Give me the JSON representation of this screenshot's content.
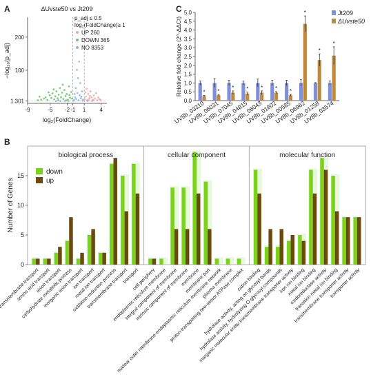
{
  "chart_data": [
    {
      "panel": "A",
      "type": "scatter",
      "title": "ΔUvste50 vs Jt209",
      "xlabel": "log₂(FoldChange)",
      "ylabel": "−log₁₀(p_adj)",
      "x_ticks": [
        "-9",
        "-5",
        "-2",
        "-1",
        "1",
        "4"
      ],
      "x_tick_values": [
        -9,
        -5,
        -2,
        -1,
        1,
        4
      ],
      "y_ticks": [
        "1.301",
        "100",
        "200"
      ],
      "y_tick_values": [
        1.301,
        100,
        200
      ],
      "xlim": [
        -9,
        5
      ],
      "ylim": [
        0,
        260
      ],
      "thresholds": {
        "padj": "p_adj ≤ 0.5",
        "fold": "log₂(FoldChange)≥ 1"
      },
      "legend": [
        {
          "label": "UP 260",
          "color": "#f4a6a0"
        },
        {
          "label": "DOWN 365",
          "color": "#6cc36c"
        },
        {
          "label": "NO 8353",
          "color": "#8fb4e8"
        }
      ],
      "points": [
        {
          "x": -7.2,
          "y": 3,
          "s": "down"
        },
        {
          "x": -6.6,
          "y": 5,
          "s": "down"
        },
        {
          "x": -6.1,
          "y": 8,
          "s": "down"
        },
        {
          "x": -5.8,
          "y": 12,
          "s": "down"
        },
        {
          "x": -5.5,
          "y": 4,
          "s": "down"
        },
        {
          "x": -5.1,
          "y": 18,
          "s": "down"
        },
        {
          "x": -4.8,
          "y": 10,
          "s": "down"
        },
        {
          "x": -4.6,
          "y": 24,
          "s": "down"
        },
        {
          "x": -4.3,
          "y": 6,
          "s": "down"
        },
        {
          "x": -4.1,
          "y": 15,
          "s": "down"
        },
        {
          "x": -3.9,
          "y": 30,
          "s": "down"
        },
        {
          "x": -3.7,
          "y": 9,
          "s": "down"
        },
        {
          "x": -3.5,
          "y": 20,
          "s": "down"
        },
        {
          "x": -3.3,
          "y": 40,
          "s": "down"
        },
        {
          "x": -3.1,
          "y": 12,
          "s": "down"
        },
        {
          "x": -2.9,
          "y": 26,
          "s": "down"
        },
        {
          "x": -2.7,
          "y": 7,
          "s": "down"
        },
        {
          "x": -2.5,
          "y": 34,
          "s": "down"
        },
        {
          "x": -2.3,
          "y": 16,
          "s": "down"
        },
        {
          "x": -2.1,
          "y": 22,
          "s": "down"
        },
        {
          "x": -1.9,
          "y": 5,
          "s": "down"
        },
        {
          "x": -1.7,
          "y": 45,
          "s": "down"
        },
        {
          "x": -1.5,
          "y": 11,
          "s": "down"
        },
        {
          "x": -1.3,
          "y": 28,
          "s": "down"
        },
        {
          "x": -1.15,
          "y": 8,
          "s": "down"
        },
        {
          "x": -6.9,
          "y": 14,
          "s": "down"
        },
        {
          "x": -5.3,
          "y": 27,
          "s": "down"
        },
        {
          "x": -4.4,
          "y": 36,
          "s": "down"
        },
        {
          "x": -3.6,
          "y": 3,
          "s": "down"
        },
        {
          "x": -2.8,
          "y": 50,
          "s": "down"
        },
        {
          "x": -2.2,
          "y": 3,
          "s": "down"
        },
        {
          "x": -1.6,
          "y": 19,
          "s": "down"
        },
        {
          "x": 1.1,
          "y": 6,
          "s": "up"
        },
        {
          "x": 1.3,
          "y": 14,
          "s": "up"
        },
        {
          "x": 1.5,
          "y": 4,
          "s": "up"
        },
        {
          "x": 1.7,
          "y": 22,
          "s": "up"
        },
        {
          "x": 1.9,
          "y": 9,
          "s": "up"
        },
        {
          "x": 2.1,
          "y": 30,
          "s": "up"
        },
        {
          "x": 2.3,
          "y": 12,
          "s": "up"
        },
        {
          "x": 2.5,
          "y": 5,
          "s": "up"
        },
        {
          "x": 2.7,
          "y": 18,
          "s": "up"
        },
        {
          "x": 2.9,
          "y": 8,
          "s": "up"
        },
        {
          "x": 3.1,
          "y": 25,
          "s": "up"
        },
        {
          "x": 3.3,
          "y": 3,
          "s": "up"
        },
        {
          "x": 3.5,
          "y": 11,
          "s": "up"
        },
        {
          "x": 3.7,
          "y": 6,
          "s": "up"
        },
        {
          "x": 1.4,
          "y": 38,
          "s": "up"
        },
        {
          "x": 2.0,
          "y": 16,
          "s": "up"
        },
        {
          "x": 2.6,
          "y": 3,
          "s": "up"
        },
        {
          "x": 3.9,
          "y": 4,
          "s": "up"
        },
        {
          "x": 1.2,
          "y": 27,
          "s": "up"
        },
        {
          "x": 1.8,
          "y": 3,
          "s": "up"
        },
        {
          "x": -0.8,
          "y": 4,
          "s": "no"
        },
        {
          "x": -0.6,
          "y": 12,
          "s": "no"
        },
        {
          "x": -0.4,
          "y": 7,
          "s": "no"
        },
        {
          "x": -0.2,
          "y": 25,
          "s": "no"
        },
        {
          "x": 0,
          "y": 3,
          "s": "no"
        },
        {
          "x": 0.2,
          "y": 18,
          "s": "no"
        },
        {
          "x": 0.4,
          "y": 9,
          "s": "no"
        },
        {
          "x": 0.6,
          "y": 30,
          "s": "no"
        },
        {
          "x": 0.8,
          "y": 5,
          "s": "no"
        },
        {
          "x": -0.5,
          "y": 40,
          "s": "no"
        },
        {
          "x": 0.3,
          "y": 55,
          "s": "no"
        },
        {
          "x": -0.1,
          "y": 70,
          "s": "no"
        },
        {
          "x": 0.1,
          "y": 120,
          "s": "no"
        },
        {
          "x": -0.3,
          "y": 95,
          "s": "no"
        },
        {
          "x": 0.5,
          "y": 14,
          "s": "no"
        },
        {
          "x": -0.7,
          "y": 22,
          "s": "no"
        },
        {
          "x": -2.4,
          "y": 1,
          "s": "no"
        },
        {
          "x": -3.2,
          "y": 0.8,
          "s": "no"
        },
        {
          "x": 2.4,
          "y": 1,
          "s": "no"
        },
        {
          "x": -1.8,
          "y": 0.6,
          "s": "no"
        },
        {
          "x": 0.7,
          "y": 2,
          "s": "no"
        },
        {
          "x": -0.9,
          "y": 1.5,
          "s": "no"
        },
        {
          "x": 1.6,
          "y": 0.7,
          "s": "no"
        },
        {
          "x": -4.0,
          "y": 0.5,
          "s": "no"
        }
      ]
    },
    {
      "panel": "C",
      "type": "bar",
      "ylabel": "Relative fold change (2^-ΔΔCt)",
      "ylim": [
        0,
        5
      ],
      "y_ticks": [
        "0.0",
        "0.5",
        "1.0",
        "1.5",
        "2.0",
        "2.5",
        "3.0",
        "3.5",
        "4.0",
        "4.5",
        "5.0"
      ],
      "y_tick_values": [
        0,
        0.5,
        1,
        1.5,
        2,
        2.5,
        3,
        3.5,
        4,
        4.5,
        5
      ],
      "categories": [
        "UV8b_03310",
        "UV8b_06031",
        "UV8b_07045",
        "UV8b_04815",
        "UV8b_06043",
        "UV8b_01802",
        "UV8b_00585",
        "UV8b_06962",
        "UV8b_01258",
        "UV8b_03574"
      ],
      "series": [
        {
          "name": "Jt209",
          "color": "#7f8fd8",
          "values": [
            1.0,
            1.0,
            1.0,
            1.0,
            1.0,
            1.0,
            1.0,
            1.0,
            1.0,
            1.0
          ],
          "errors": [
            0.12,
            0.25,
            0.15,
            0.1,
            0.22,
            0.15,
            0.15,
            0.18,
            0.02,
            0.12
          ]
        },
        {
          "name": "ΔUvste50",
          "color": "#c08a3e",
          "values": [
            0.25,
            0.3,
            0.45,
            0.4,
            0.45,
            0.45,
            0.3,
            4.35,
            2.3,
            2.55
          ],
          "errors": [
            0.04,
            0.05,
            0.1,
            0.08,
            0.1,
            0.06,
            0.05,
            0.45,
            0.35,
            0.5
          ]
        }
      ],
      "significance": [
        "*",
        "*",
        "*",
        "*",
        "*",
        "*",
        "*",
        "*",
        "*",
        "*"
      ]
    },
    {
      "panel": "B",
      "type": "bar",
      "ylabel": "Number of Genes",
      "ylim": [
        0,
        20
      ],
      "y_ticks": [
        "0",
        "5",
        "10",
        "15"
      ],
      "y_tick_values": [
        0,
        5,
        10,
        15
      ],
      "legend": [
        {
          "label": "down",
          "color": "#7bd11e"
        },
        {
          "label": "up",
          "color": "#6b4a10"
        }
      ],
      "groups": [
        {
          "name": "biological process",
          "categories": [
            "amino acid transmembrane transport",
            "amino acid transport",
            "anion transport",
            "carbohydrate metabolic process",
            "inorganic anion transport",
            "ion transport",
            "metal ion transport",
            "oxidation-reduction process",
            "transmembrane transport",
            "transport"
          ],
          "down": [
            1,
            1,
            2,
            4,
            1,
            5,
            2,
            17,
            15,
            17
          ],
          "up": [
            1,
            1,
            3,
            8,
            2,
            6,
            2,
            18,
            9,
            12
          ]
        },
        {
          "name": "cellular component",
          "categories": [
            "cell periphery",
            "endoplasmic reticulum membrane",
            "integral component of membrane",
            "intrinsic component of membrane",
            "membrane",
            "membrane part",
            "nuclear outer membrane-endoplasmic reticulum membrane network",
            "plasma membrane",
            "proton-transporting two-sector ATPase complex"
          ],
          "down": [
            1,
            1,
            13,
            13,
            19,
            14,
            1,
            1,
            1
          ],
          "up": [
            1,
            0,
            6,
            6,
            12,
            6,
            0,
            0,
            0
          ]
        },
        {
          "name": "molecular function",
          "categories": [
            "cation binding",
            "hydrolase activity, acting on glycosyl bonds",
            "hydrolase activity, hydrolyzing O-glycosyl compounds",
            "inorganic molecular entity transmembrane transporter activity",
            "iron ion binding",
            "metal ion binding",
            "oxidoreductase activity",
            "transition metal ion binding",
            "transmembrane transporter activity",
            "transporter activity"
          ],
          "down": [
            16,
            3,
            3,
            4,
            5,
            16,
            18,
            15,
            8,
            8
          ],
          "up": [
            12,
            6,
            6,
            5,
            4,
            12,
            16,
            9,
            8,
            8
          ]
        }
      ]
    }
  ],
  "panel_labels": {
    "a": "A",
    "b": "B",
    "c": "C"
  }
}
